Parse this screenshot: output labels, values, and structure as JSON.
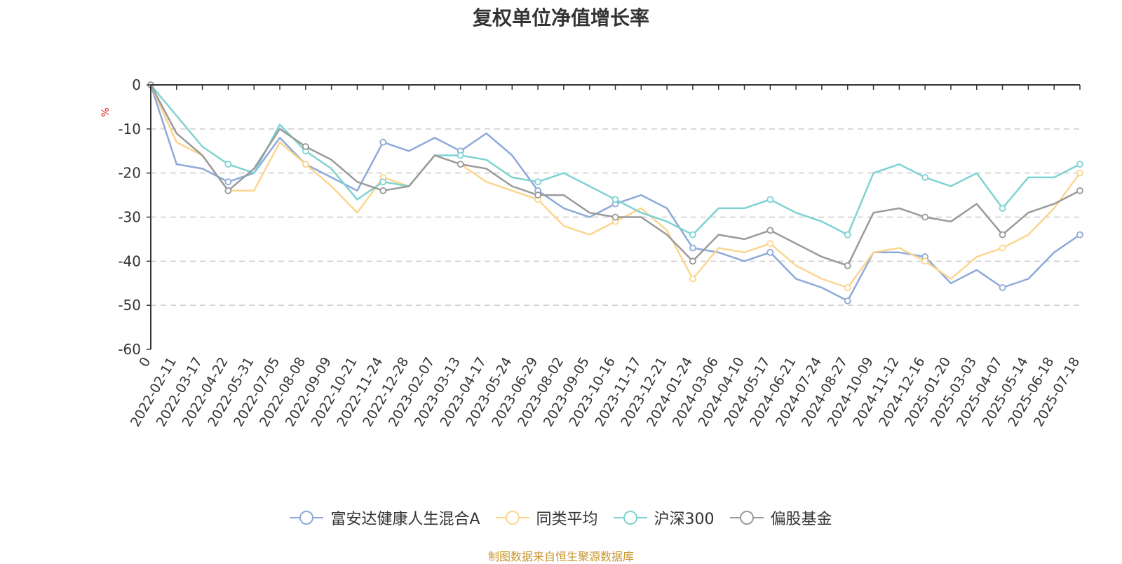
{
  "chart_data": {
    "type": "line",
    "title": "复权单位净值增长率",
    "ylabel": "%",
    "ylim": [
      -60,
      0
    ],
    "yticks": [
      0,
      -10,
      -20,
      -30,
      -40,
      -50,
      -60
    ],
    "grid": true,
    "legend_position": "bottom",
    "x": [
      "0",
      "2022-02-11",
      "2022-03-17",
      "2022-04-22",
      "2022-05-31",
      "2022-07-05",
      "2022-08-08",
      "2022-09-09",
      "2022-10-21",
      "2022-11-24",
      "2022-12-28",
      "2023-02-07",
      "2023-03-13",
      "2023-04-17",
      "2023-05-24",
      "2023-06-29",
      "2023-08-02",
      "2023-09-05",
      "2023-10-16",
      "2023-11-17",
      "2023-12-21",
      "2024-01-24",
      "2024-03-06",
      "2024-04-10",
      "2024-05-17",
      "2024-06-21",
      "2024-07-24",
      "2024-08-27",
      "2024-10-09",
      "2024-11-12",
      "2024-12-16",
      "2025-01-20",
      "2025-03-03",
      "2025-04-07",
      "2025-05-14",
      "2025-06-18",
      "2025-07-18"
    ],
    "series": [
      {
        "name": "富安达健康人生混合A",
        "color": "#8ea9d9",
        "values": [
          0,
          -18,
          -19,
          -22,
          -20,
          -12,
          -18,
          -21,
          -24,
          -13,
          -15,
          -12,
          -15,
          -11,
          -16,
          -24,
          -28,
          -30,
          -27,
          -25,
          -28,
          -37,
          -38,
          -40,
          -38,
          -44,
          -46,
          -49,
          -38,
          -38,
          -39,
          -45,
          -42,
          -46,
          -44,
          -38,
          -34
        ]
      },
      {
        "name": "同类平均",
        "color": "#fcd58f",
        "values": [
          0,
          -13,
          -16,
          -24,
          -24,
          -13,
          -18,
          -23,
          -29,
          -21,
          -23,
          -16,
          -18,
          -22,
          -24,
          -26,
          -32,
          -34,
          -31,
          -28,
          -33,
          -44,
          -37,
          -38,
          -36,
          -41,
          -44,
          -46,
          -38,
          -37,
          -40,
          -44,
          -39,
          -37,
          -34,
          -28,
          -20
        ]
      },
      {
        "name": "沪深300",
        "color": "#7ed3d1",
        "values": [
          0,
          -7,
          -14,
          -18,
          -20,
          -9,
          -15,
          -19,
          -26,
          -22,
          -23,
          -16,
          -16,
          -17,
          -21,
          -22,
          -20,
          -23,
          -26,
          -29,
          -31,
          -34,
          -28,
          -28,
          -26,
          -29,
          -31,
          -34,
          -20,
          -18,
          -21,
          -23,
          -20,
          -28,
          -21,
          -21,
          -18
        ]
      },
      {
        "name": "偏股基金",
        "color": "#9a9a9a",
        "values": [
          0,
          -11,
          -16,
          -24,
          -19,
          -10,
          -14,
          -17,
          -22,
          -24,
          -23,
          -16,
          -18,
          -19,
          -23,
          -25,
          -25,
          -29,
          -30,
          -30,
          -34,
          -40,
          -34,
          -35,
          -33,
          -36,
          -39,
          -41,
          -29,
          -28,
          -30,
          -31,
          -27,
          -34,
          -29,
          -27,
          -24
        ]
      }
    ]
  },
  "legend": {
    "items": [
      {
        "label": "富安达健康人生混合A",
        "color": "#8ea9d9"
      },
      {
        "label": "同类平均",
        "color": "#fcd58f"
      },
      {
        "label": "沪深300",
        "color": "#7ed3d1"
      },
      {
        "label": "偏股基金",
        "color": "#9a9a9a"
      }
    ]
  },
  "source": {
    "text": "制图数据来自恒生聚源数据库",
    "color": "#c8962e"
  },
  "colors": {
    "axis": "#333333",
    "grid": "#cccccc",
    "ylabel": "#e02020"
  }
}
